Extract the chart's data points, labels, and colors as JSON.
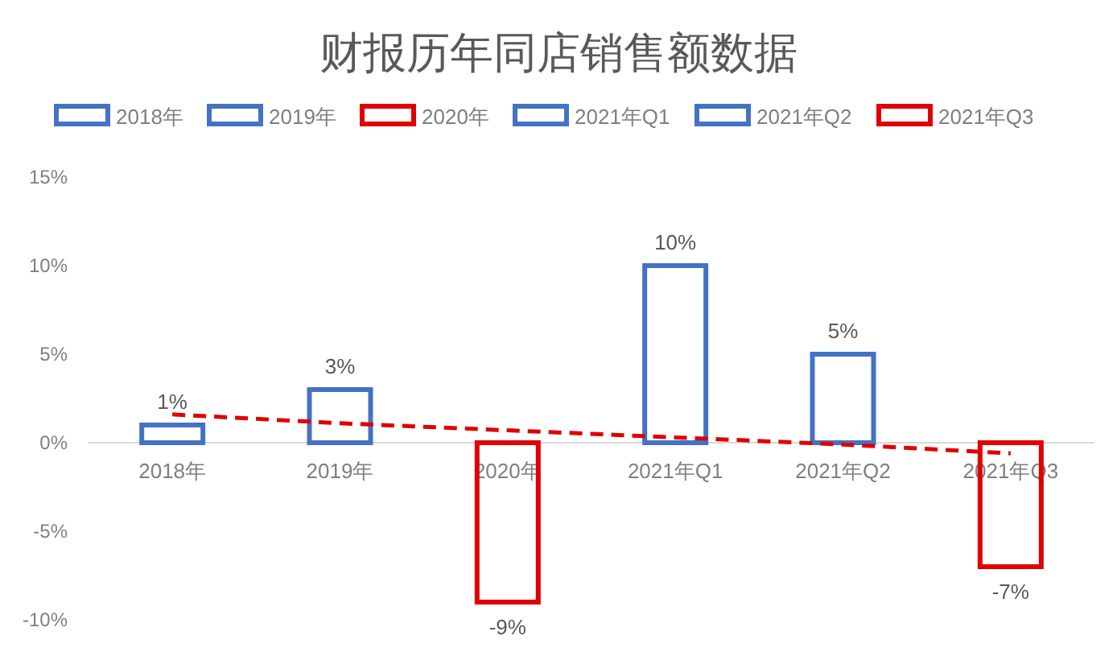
{
  "chart_data": {
    "type": "bar",
    "title": "财报历年同店销售额数据",
    "categories": [
      "2018年",
      "2019年",
      "2020年",
      "2021年Q1",
      "2021年Q2",
      "2021年Q3"
    ],
    "ylim": [
      -10,
      15
    ],
    "yticks": [
      {
        "value": -10,
        "label": "-10%"
      },
      {
        "value": -5,
        "label": "-5%"
      },
      {
        "value": 0,
        "label": "0%"
      },
      {
        "value": 5,
        "label": "5%"
      },
      {
        "value": 10,
        "label": "10%"
      },
      {
        "value": 15,
        "label": "15%"
      }
    ],
    "grid": false,
    "legend": "top",
    "series": [
      {
        "name": "2018年",
        "color": "#4472c4",
        "values": [
          1,
          null,
          null,
          null,
          null,
          null
        ],
        "value_labels": [
          "1%",
          null,
          null,
          null,
          null,
          null
        ]
      },
      {
        "name": "2019年",
        "color": "#4472c4",
        "values": [
          null,
          3,
          null,
          null,
          null,
          null
        ],
        "value_labels": [
          null,
          "3%",
          null,
          null,
          null,
          null
        ]
      },
      {
        "name": "2020年",
        "color": "#e00000",
        "values": [
          null,
          null,
          -9,
          null,
          null,
          null
        ],
        "value_labels": [
          null,
          null,
          "-9%",
          null,
          null,
          null
        ]
      },
      {
        "name": "2021年Q1",
        "color": "#4472c4",
        "values": [
          null,
          null,
          null,
          10,
          null,
          null
        ],
        "value_labels": [
          null,
          null,
          null,
          "10%",
          null,
          null
        ]
      },
      {
        "name": "2021年Q2",
        "color": "#4472c4",
        "values": [
          null,
          null,
          null,
          null,
          5,
          null
        ],
        "value_labels": [
          null,
          null,
          null,
          null,
          "5%",
          null
        ]
      },
      {
        "name": "2021年Q3",
        "color": "#e00000",
        "values": [
          null,
          null,
          null,
          null,
          null,
          -7
        ],
        "value_labels": [
          null,
          null,
          null,
          null,
          null,
          "-7%"
        ]
      },
      {
        "type": "line",
        "color": "#e00000",
        "line_style": "dashed",
        "marker": "none",
        "values": [
          1.6,
          1.1,
          0.7,
          0.3,
          -0.1,
          -0.6
        ]
      }
    ]
  }
}
